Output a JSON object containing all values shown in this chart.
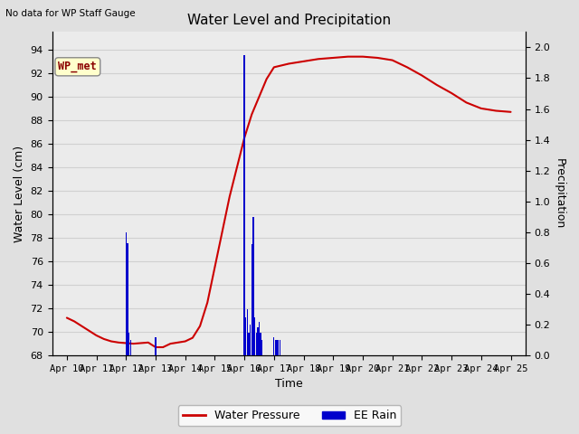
{
  "title": "Water Level and Precipitation",
  "top_left_text": "No data for WP Staff Gauge",
  "annotation_label": "WP_met",
  "xlabel": "Time",
  "ylabel_left": "Water Level (cm)",
  "ylabel_right": "Precipitation",
  "ylim_left": [
    68,
    95.5
  ],
  "ylim_right": [
    0.0,
    2.1
  ],
  "yticks_left": [
    68,
    70,
    72,
    74,
    76,
    78,
    80,
    82,
    84,
    86,
    88,
    90,
    92,
    94
  ],
  "yticks_right": [
    0.0,
    0.2,
    0.4,
    0.6,
    0.8,
    1.0,
    1.2,
    1.4,
    1.6,
    1.8,
    2.0
  ],
  "xtick_labels": [
    "Apr 10",
    "Apr 11",
    "Apr 12",
    "Apr 13",
    "Apr 14",
    "Apr 15",
    "Apr 16",
    "Apr 17",
    "Apr 18",
    "Apr 19",
    "Apr 20",
    "Apr 21",
    "Apr 22",
    "Apr 23",
    "Apr 24",
    "Apr 25"
  ],
  "water_level_x": [
    0,
    0.25,
    0.5,
    0.75,
    1.0,
    1.25,
    1.5,
    1.75,
    2.0,
    2.25,
    2.5,
    2.75,
    3.0,
    3.25,
    3.5,
    3.75,
    4.0,
    4.25,
    4.5,
    4.75,
    5.0,
    5.25,
    5.5,
    5.75,
    6.0,
    6.25,
    6.5,
    6.75,
    7.0,
    7.5,
    8.0,
    8.5,
    9.0,
    9.5,
    10.0,
    10.5,
    11.0,
    11.5,
    12.0,
    12.5,
    13.0,
    13.5,
    14.0,
    14.5,
    15.0
  ],
  "water_level_y": [
    71.2,
    70.9,
    70.5,
    70.1,
    69.7,
    69.4,
    69.2,
    69.1,
    69.05,
    69.0,
    69.05,
    69.1,
    68.7,
    68.7,
    69.0,
    69.1,
    69.2,
    69.5,
    70.5,
    72.5,
    75.5,
    78.5,
    81.5,
    84.0,
    86.5,
    88.5,
    90.0,
    91.5,
    92.5,
    92.8,
    93.0,
    93.2,
    93.3,
    93.4,
    93.4,
    93.3,
    93.1,
    92.5,
    91.8,
    91.0,
    90.3,
    89.5,
    89.0,
    88.8,
    88.7
  ],
  "rain_x": [
    2.0,
    2.05,
    2.1,
    2.15,
    3.0,
    6.0,
    6.05,
    6.1,
    6.15,
    6.2,
    6.25,
    6.3,
    6.35,
    6.4,
    6.45,
    6.5,
    6.55,
    6.6,
    7.0,
    7.05,
    7.1,
    7.15,
    7.2
  ],
  "rain_y": [
    0.8,
    0.73,
    0.15,
    0.1,
    0.12,
    1.95,
    0.25,
    0.3,
    0.15,
    0.2,
    0.72,
    0.9,
    0.25,
    0.15,
    0.18,
    0.22,
    0.15,
    0.1,
    0.12,
    0.1,
    0.1,
    0.1,
    0.1
  ],
  "line_color": "#cc0000",
  "bar_color": "#0000cc",
  "background_color": "#e0e0e0",
  "plot_bg_color": "#ebebeb",
  "grid_color": "#d0d0d0",
  "legend_line_color": "#cc0000",
  "legend_bar_color": "#0000cc",
  "figsize": [
    6.4,
    4.8
  ],
  "dpi": 100
}
